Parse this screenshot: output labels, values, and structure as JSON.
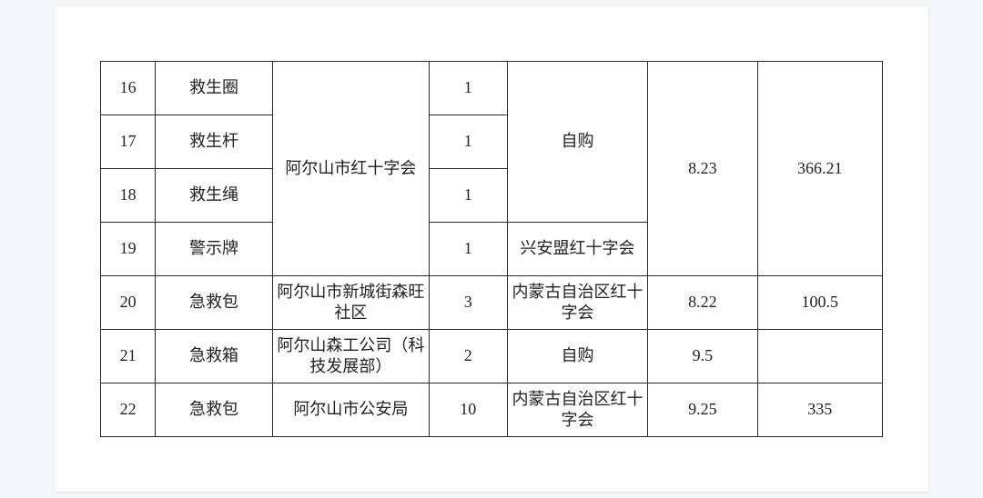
{
  "table": {
    "rows": [
      {
        "idx": "16",
        "item": "救生圈",
        "qty": "1"
      },
      {
        "idx": "17",
        "item": "救生杆",
        "qty": "1"
      },
      {
        "idx": "18",
        "item": "救生绳",
        "qty": "1"
      },
      {
        "idx": "19",
        "item": "警示牌",
        "qty": "1"
      },
      {
        "idx": "20",
        "item": "急救包",
        "qty": "3"
      },
      {
        "idx": "21",
        "item": "急救箱",
        "qty": "2"
      },
      {
        "idx": "22",
        "item": "急救包",
        "qty": "10"
      }
    ],
    "merged": {
      "org_16_19": "阿尔山市红十字会",
      "src_16_18": "自购",
      "src_19": "兴安盟红十字会",
      "n1_16_19": "8.23",
      "n2_16_19": "366.21",
      "org_20": "阿尔山市新城街森旺社区",
      "src_20": "内蒙古自治区红十字会",
      "n1_20": "8.22",
      "n2_20": "100.5",
      "org_21": "阿尔山森工公司（科技发展部）",
      "src_21": "自购",
      "n1_21": "9.5",
      "n2_21": "",
      "org_22": "阿尔山市公安局",
      "src_22": "内蒙古自治区红十字会",
      "n1_22": "9.25",
      "n2_22": "335"
    }
  }
}
